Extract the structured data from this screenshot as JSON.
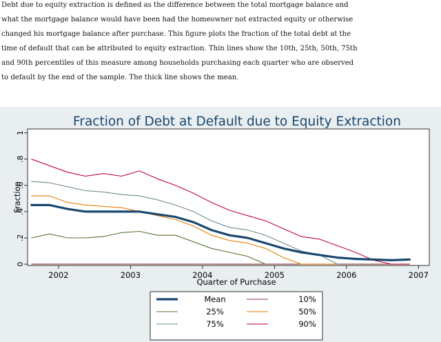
{
  "caption": [
    "Debt due to equity extraction is defined as the difference between the total mortgage balance and",
    "what the mortgage balance would have been had the homeowner not extracted equity or otherwise",
    "changed his mortgage balance after purchase. This figure plots the fraction of the total debt at the",
    "time of default that can be attributed to equity extraction. Thin lines show the 10th, 25th, 50th, 75th",
    "and 90th percentiles of this measure among households purchasing each quarter who are observed",
    "to default by the end of the sample. The thick line shows the mean."
  ],
  "chart_data": {
    "type": "line",
    "title": "Fraction of Debt at Default due to Equity Extraction",
    "xlabel": "Quarter of Purchase",
    "ylabel": "Fraction",
    "xlim": [
      2001.57,
      2007.15
    ],
    "ylim": [
      -0.01,
      1.03
    ],
    "xticks": [
      2002,
      2003,
      2004,
      2005,
      2006,
      2007
    ],
    "xtick_labels": [
      "2002",
      "2003",
      "2004",
      "2005",
      "2006",
      "2007"
    ],
    "yticks": [
      0,
      0.2,
      0.4,
      0.6,
      0.8,
      1
    ],
    "ytick_labels": [
      "0",
      ".2",
      ".4",
      ".6",
      ".8",
      "1"
    ],
    "legend_position": "bottom",
    "x": [
      2001.625,
      2001.875,
      2002.125,
      2002.375,
      2002.625,
      2002.875,
      2003.125,
      2003.375,
      2003.625,
      2003.875,
      2004.125,
      2004.375,
      2004.625,
      2004.875,
      2005.125,
      2005.375,
      2005.625,
      2005.875,
      2006.125,
      2006.375,
      2006.625,
      2006.875
    ],
    "series": [
      {
        "name": "Mean",
        "color": "#1a476f",
        "width": 3.2,
        "values": [
          0.45,
          0.45,
          0.42,
          0.4,
          0.4,
          0.4,
          0.4,
          0.38,
          0.36,
          0.32,
          0.26,
          0.22,
          0.2,
          0.16,
          0.12,
          0.09,
          0.07,
          0.05,
          0.04,
          0.035,
          0.03,
          0.035
        ]
      },
      {
        "name": "10%",
        "color": "#90353b",
        "width": 1.1,
        "values": [
          0,
          0,
          0,
          0,
          0,
          0,
          0,
          0,
          0,
          0,
          0,
          0,
          0,
          0,
          0,
          0,
          0,
          0,
          0,
          0,
          0,
          0
        ]
      },
      {
        "name": "25%",
        "color": "#55752f",
        "width": 1.1,
        "values": [
          0.2,
          0.23,
          0.2,
          0.2,
          0.21,
          0.24,
          0.25,
          0.22,
          0.22,
          0.17,
          0.12,
          0.09,
          0.06,
          0.0,
          null,
          null,
          null,
          null,
          null,
          null,
          null,
          null
        ]
      },
      {
        "name": "50%",
        "color": "#e37e00",
        "width": 1.1,
        "values": [
          0.52,
          0.52,
          0.47,
          0.45,
          0.44,
          0.43,
          0.4,
          0.37,
          0.34,
          0.29,
          0.22,
          0.18,
          0.16,
          0.12,
          0.05,
          0.0,
          0.0,
          0.0,
          null,
          null,
          null,
          null
        ]
      },
      {
        "name": "75%",
        "color": "#6e8e84",
        "width": 1.1,
        "values": [
          0.63,
          0.62,
          0.59,
          0.56,
          0.55,
          0.53,
          0.52,
          0.49,
          0.45,
          0.4,
          0.33,
          0.28,
          0.26,
          0.22,
          0.16,
          0.1,
          0.07,
          0.0,
          null,
          null,
          null,
          null
        ]
      },
      {
        "name": "90%",
        "color": "#c10534",
        "width": 1.1,
        "values": [
          0.8,
          0.75,
          0.7,
          0.67,
          0.69,
          0.67,
          0.71,
          0.65,
          0.6,
          0.54,
          0.47,
          0.41,
          0.37,
          0.33,
          0.27,
          0.21,
          0.19,
          0.14,
          0.09,
          0.03,
          0.0,
          0.0
        ]
      }
    ]
  }
}
